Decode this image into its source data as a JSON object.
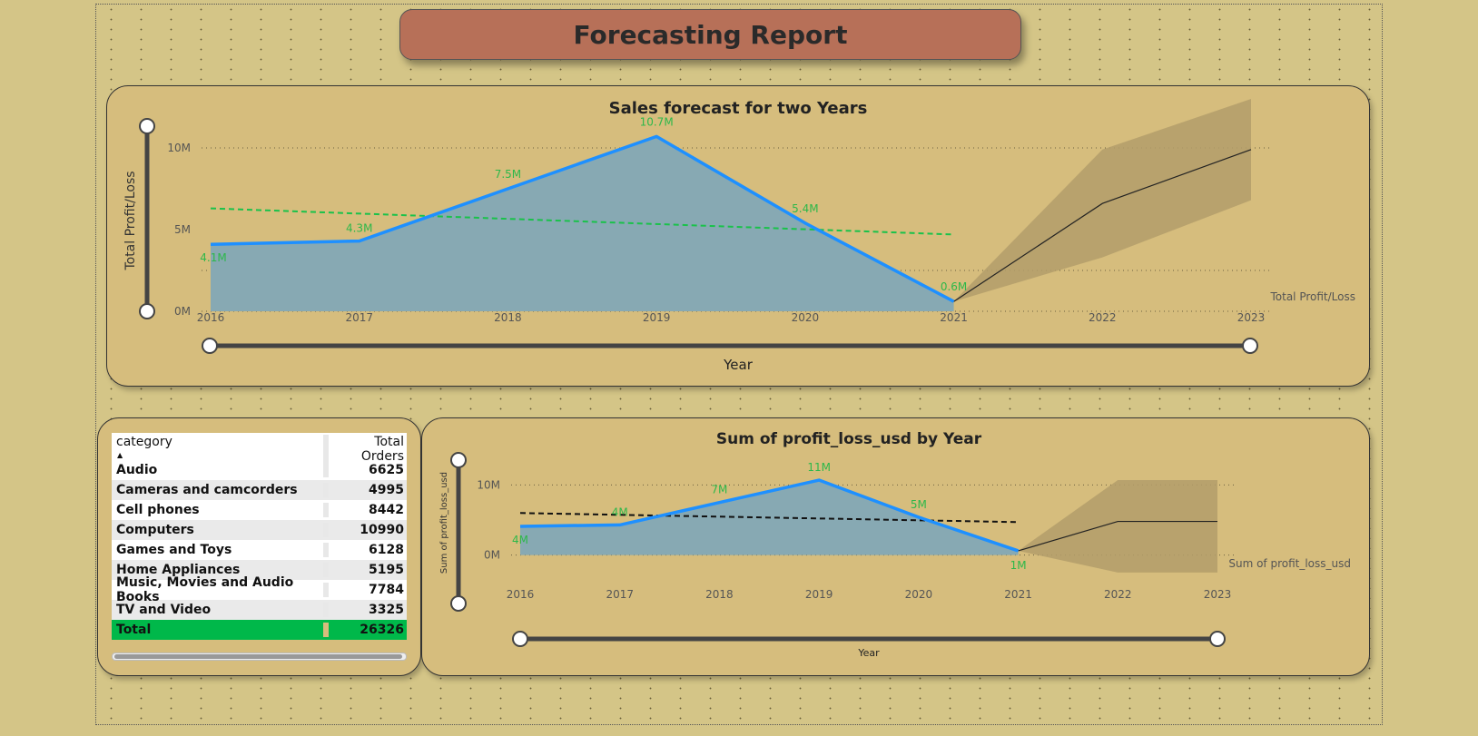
{
  "report_title": "Forecasting Report",
  "top_chart": {
    "title": "Sales forecast for two Years",
    "ylabel": "Total Profit/Loss",
    "xlabel": "Year",
    "legend_label": "Total Profit/Loss",
    "y_ticks": [
      "10M",
      "5M",
      "0M"
    ],
    "x_ticks": [
      "2016",
      "2017",
      "2018",
      "2019",
      "2020",
      "2021",
      "2022",
      "2023"
    ],
    "data_labels": [
      "4.1M",
      "4.3M",
      "7.5M",
      "10.7M",
      "5.4M",
      "0.6M"
    ]
  },
  "bottom_chart": {
    "title": "Sum of profit_loss_usd by Year",
    "ylabel": "Sum of profit_loss_usd",
    "xlabel": "Year",
    "legend_label": "Sum of profit_loss_usd",
    "y_ticks": [
      "10M",
      "0M"
    ],
    "x_ticks": [
      "2016",
      "2017",
      "2018",
      "2019",
      "2020",
      "2021",
      "2022",
      "2023"
    ],
    "data_labels": [
      "4M",
      "4M",
      "7M",
      "11M",
      "5M",
      "1M"
    ]
  },
  "chart_data": [
    {
      "type": "area",
      "title": "Sales forecast for two Years",
      "xlabel": "Year",
      "ylabel": "Total Profit/Loss",
      "x": [
        2016,
        2017,
        2018,
        2019,
        2020,
        2021
      ],
      "ylim": [
        0,
        11000000
      ],
      "series": [
        {
          "name": "Total Profit/Loss",
          "values": [
            4100000,
            4300000,
            7500000,
            10700000,
            5400000,
            600000
          ]
        }
      ],
      "trend": {
        "start": [
          2016,
          6300000
        ],
        "end": [
          2021,
          4700000
        ]
      },
      "forecast": {
        "x": [
          2021,
          2022,
          2023
        ],
        "values": [
          600000,
          6600000,
          9900000
        ],
        "upper": [
          600000,
          9900000,
          13000000
        ],
        "lower": [
          600000,
          3300000,
          6800000
        ]
      },
      "legend": "right"
    },
    {
      "type": "area",
      "title": "Sum of profit_loss_usd by Year",
      "xlabel": "Year",
      "ylabel": "Sum of profit_loss_usd",
      "x": [
        2016,
        2017,
        2018,
        2019,
        2020,
        2021
      ],
      "ylim": [
        -2000000,
        12000000
      ],
      "series": [
        {
          "name": "Sum of profit_loss_usd",
          "values": [
            4100000,
            4300000,
            7500000,
            10700000,
            5400000,
            600000
          ]
        }
      ],
      "trend": {
        "start": [
          2016,
          6000000
        ],
        "end": [
          2021,
          4700000
        ]
      },
      "forecast": {
        "x": [
          2021,
          2022,
          2023
        ],
        "values": [
          600000,
          4800000,
          4800000
        ],
        "upper": [
          600000,
          10700000,
          10700000
        ],
        "lower": [
          600000,
          -2500000,
          -2500000
        ]
      },
      "legend": "right"
    }
  ],
  "table": {
    "headers": [
      "category",
      "Total Orders"
    ],
    "rows": [
      {
        "category": "Audio",
        "orders": "6625"
      },
      {
        "category": "Cameras and camcorders",
        "orders": "4995"
      },
      {
        "category": "Cell phones",
        "orders": "8442"
      },
      {
        "category": "Computers",
        "orders": "10990"
      },
      {
        "category": "Games and Toys",
        "orders": "6128"
      },
      {
        "category": "Home Appliances",
        "orders": "5195"
      },
      {
        "category": "Music, Movies and Audio Books",
        "orders": "7784"
      },
      {
        "category": "TV and Video",
        "orders": "3325"
      }
    ],
    "total_label": "Total",
    "total_value": "26326",
    "sort_glyph": "▲"
  },
  "colors": {
    "line": "#1e90ff",
    "area": "#87a9b3",
    "trend_top": "#19c24a",
    "trend_bottom": "#111111",
    "forecast_band": "#b39e6a",
    "label_green": "#2db84a",
    "panel": "#d6bd7d"
  }
}
